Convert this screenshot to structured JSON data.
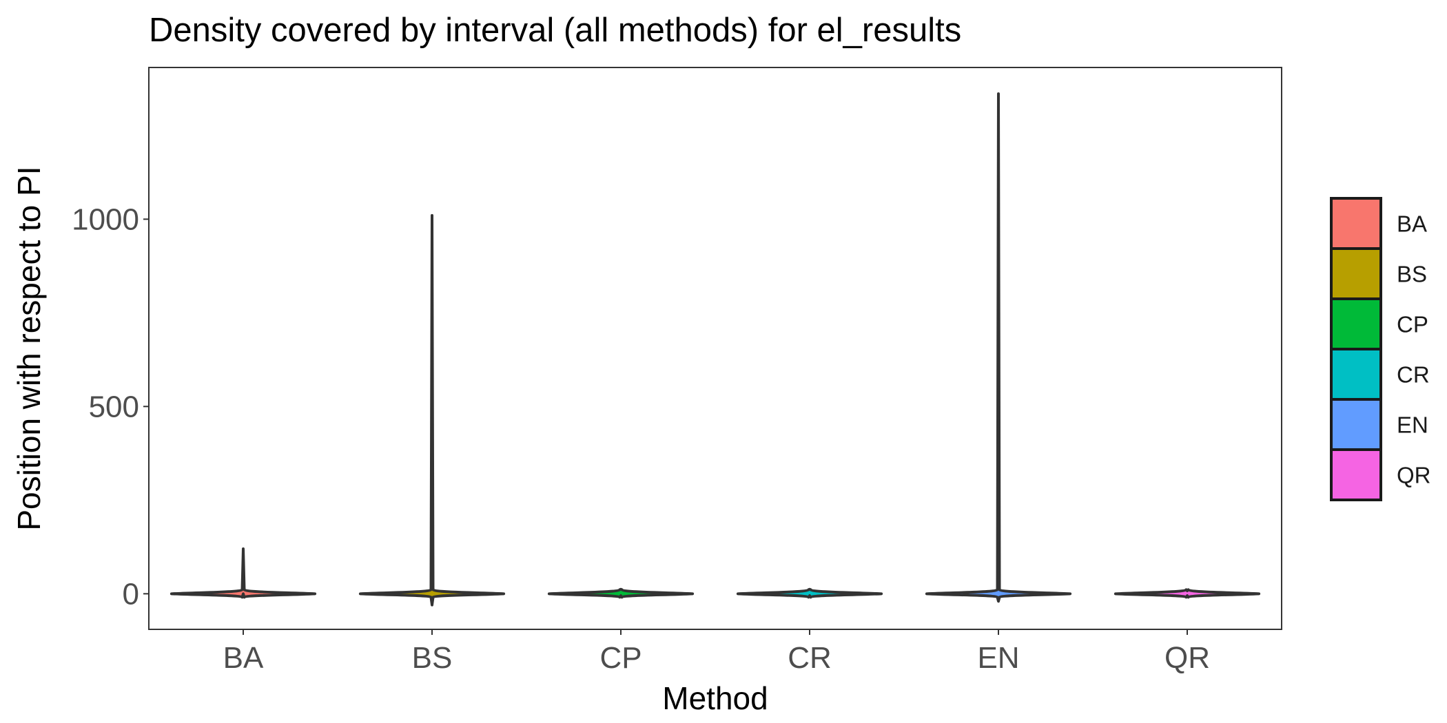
{
  "chart_data": {
    "type": "violin",
    "title": "Density covered by interval (all methods) for el_results",
    "xlabel": "Method",
    "ylabel": "Position with respect to PI",
    "categories": [
      "BA",
      "BS",
      "CP",
      "CR",
      "EN",
      "QR"
    ],
    "ylim": [
      -95,
      1405
    ],
    "yticks": [
      0,
      500,
      1000
    ],
    "ytick_labels": [
      "0",
      "500",
      "1000"
    ],
    "grid": false,
    "legend_position": "right",
    "series": [
      {
        "name": "BA",
        "color": "#F8766D",
        "min": 0,
        "max": 120,
        "peak_density_at": 0
      },
      {
        "name": "BS",
        "color": "#B79F00",
        "min": -30,
        "max": 1010,
        "peak_density_at": 0
      },
      {
        "name": "CP",
        "color": "#00BA38",
        "min": -5,
        "max": 12,
        "peak_density_at": 0
      },
      {
        "name": "CR",
        "color": "#00BFC4",
        "min": -5,
        "max": 12,
        "peak_density_at": 0
      },
      {
        "name": "EN",
        "color": "#619CFF",
        "min": -20,
        "max": 1335,
        "peak_density_at": 0
      },
      {
        "name": "QR",
        "color": "#F564E3",
        "min": -5,
        "max": 8,
        "peak_density_at": 0
      }
    ],
    "legend": {
      "entries": [
        {
          "label": "BA",
          "color": "#F8766D"
        },
        {
          "label": "BS",
          "color": "#B79F00"
        },
        {
          "label": "CP",
          "color": "#00BA38"
        },
        {
          "label": "CR",
          "color": "#00BFC4"
        },
        {
          "label": "EN",
          "color": "#619CFF"
        },
        {
          "label": "QR",
          "color": "#F564E3"
        }
      ]
    }
  }
}
